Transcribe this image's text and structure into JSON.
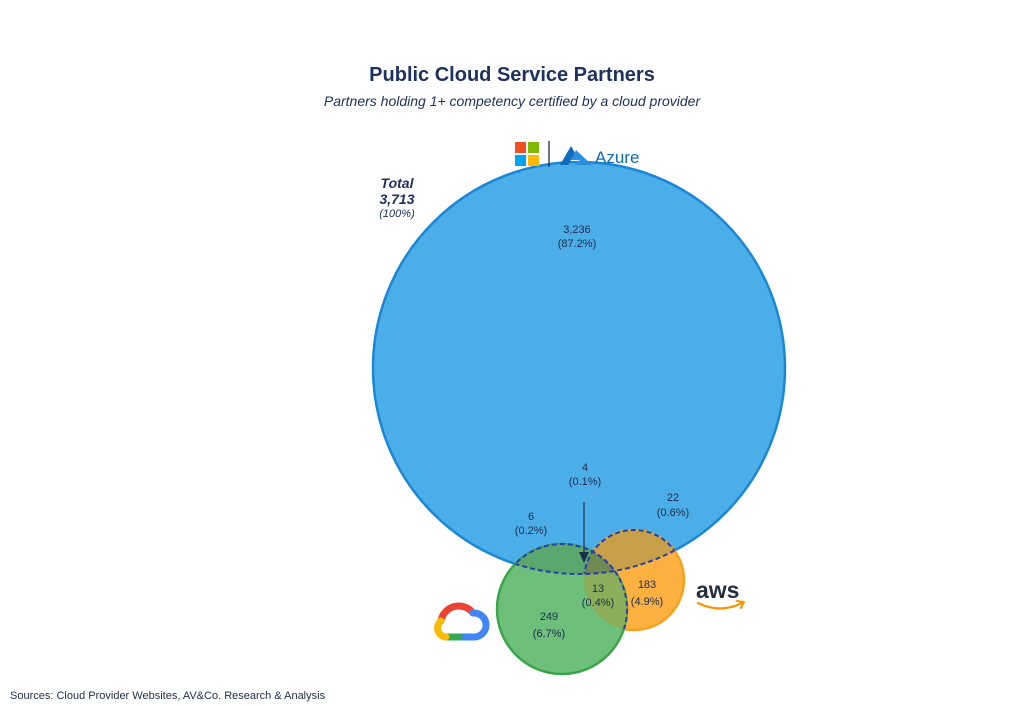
{
  "chart_data": {
    "type": "venn",
    "title": "Public Cloud Service Partners",
    "subtitle": "Partners holding 1+ competency certified by a cloud provider",
    "total": {
      "label": "Total",
      "value": "3,713",
      "pct": "(100%)"
    },
    "sets": [
      {
        "name": "Azure",
        "color": "#4baee8",
        "stroke": "#1a86d6"
      },
      {
        "name": "aws",
        "color": "#fbb040",
        "stroke": "#f4a21f"
      },
      {
        "name": "Google Cloud",
        "color": "#6dbf7a",
        "stroke": "#3aa54a"
      }
    ],
    "regions": [
      {
        "id": "azure-only",
        "value": "3,236",
        "pct": "(87.2%)"
      },
      {
        "id": "all-three",
        "value": "4",
        "pct": "(0.1%)"
      },
      {
        "id": "azure-gcp",
        "value": "6",
        "pct": "(0.2%)"
      },
      {
        "id": "azure-aws",
        "value": "22",
        "pct": "(0.6%)"
      },
      {
        "id": "aws-gcp",
        "value": "13",
        "pct": "(0.4%)"
      },
      {
        "id": "aws-only",
        "value": "183",
        "pct": "(4.9%)"
      },
      {
        "id": "gcp-only",
        "value": "249",
        "pct": "(6.7%)"
      }
    ]
  },
  "logos": {
    "azure_text": "Azure",
    "aws_text": "aws"
  },
  "source": "Sources: Cloud Provider Websites, AV&Co. Research & Analysis"
}
